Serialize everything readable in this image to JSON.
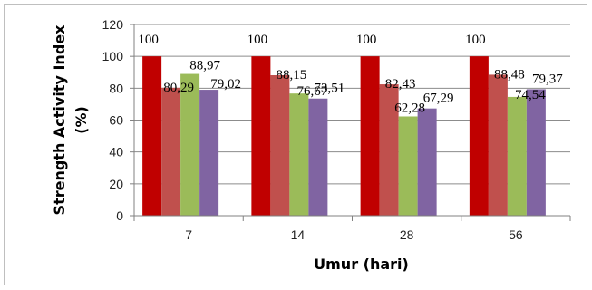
{
  "chart_data": {
    "type": "bar",
    "categories": [
      "7",
      "14",
      "28",
      "56"
    ],
    "series": [
      {
        "values": [
          100,
          100,
          100,
          100
        ],
        "labels": [
          "100",
          "100",
          "100",
          "100"
        ]
      },
      {
        "values": [
          80.29,
          88.15,
          82.43,
          88.48
        ],
        "labels": [
          "80,29",
          "88,15",
          "82,43",
          "88,48"
        ]
      },
      {
        "values": [
          88.97,
          76.67,
          62.28,
          74.54
        ],
        "labels": [
          "88,97",
          "76,67",
          "62,28",
          "74,54"
        ]
      },
      {
        "values": [
          79.02,
          73.51,
          67.29,
          79.37
        ],
        "labels": [
          "79,02",
          "73,51",
          "67,29",
          "79,37"
        ]
      }
    ],
    "series_colors": [
      "#C00000",
      "#C0504D",
      "#9BBB59",
      "#8064A2"
    ],
    "xlabel": "Umur (hari)",
    "ylabel_lines": [
      "Strength Activity Index",
      "(%)"
    ],
    "ylim": [
      0,
      120
    ],
    "yticks": [
      "0",
      "20",
      "40",
      "60",
      "80",
      "100",
      "120"
    ],
    "grid": true,
    "legend": "none"
  }
}
